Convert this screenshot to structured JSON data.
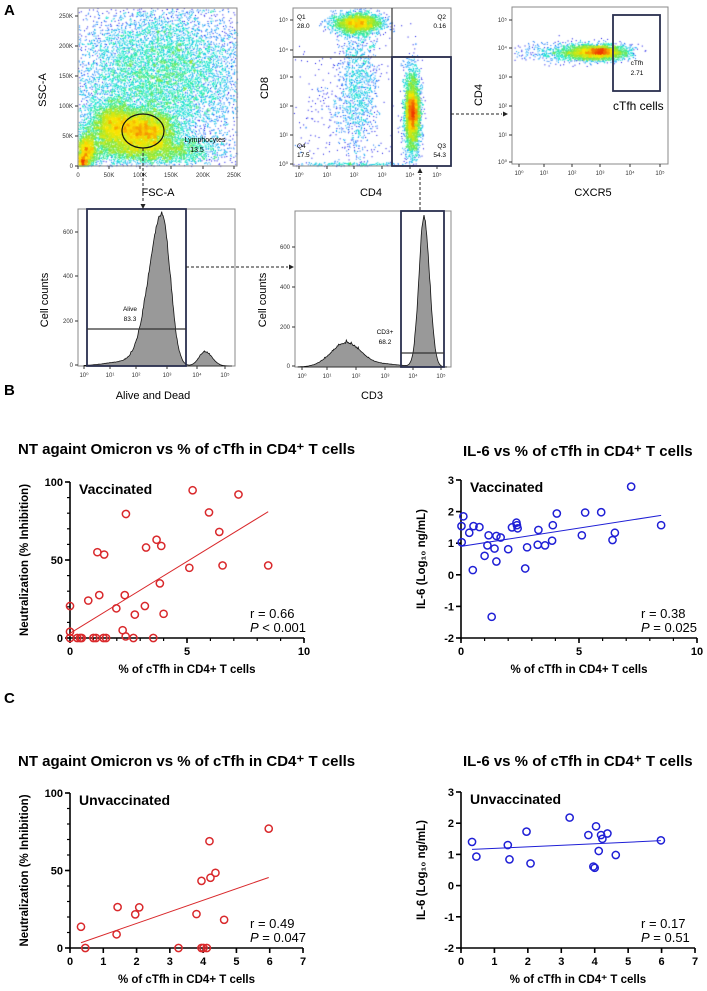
{
  "panel_a": {
    "letter": "A",
    "fsc_plot": {
      "x_label": "FSC-A",
      "y_label": "SSC-A",
      "x_ticks": [
        "0",
        "50K",
        "100K",
        "150K",
        "200K",
        "250K"
      ],
      "y_ticks": [
        "0",
        "50K",
        "100K",
        "150K",
        "200K",
        "250K"
      ],
      "gate_name": "Lymphocytes",
      "gate_value": "13.5"
    },
    "cd4_cd8_plot": {
      "x_label": "CD4",
      "y_label": "CD8",
      "x_ticks": [
        "10⁰",
        "10¹",
        "10²",
        "10³",
        "10⁴",
        "10⁵"
      ],
      "y_ticks": [
        "10⁰",
        "10¹",
        "10²",
        "10³",
        "10⁴",
        "10⁵"
      ],
      "quadrants": [
        {
          "name": "Q1",
          "value": "28.0"
        },
        {
          "name": "Q2",
          "value": "0.16"
        },
        {
          "name": "Q3",
          "value": "54.3"
        },
        {
          "name": "Q4",
          "value": "17.5"
        }
      ]
    },
    "cxcr5_plot": {
      "x_label": "CXCR5",
      "y_label": "CD4",
      "x_ticks": [
        "10⁰",
        "10¹",
        "10²",
        "10³",
        "10⁴",
        "10⁵"
      ],
      "y_ticks": [
        "10⁰",
        "10¹",
        "10²",
        "10³",
        "10⁴",
        "10⁵"
      ],
      "gate_name": "cTfh",
      "gate_value": "2.71",
      "caption": "cTfh cells"
    },
    "live_dead_hist": {
      "x_label": "Alive and Dead",
      "y_label": "Cell counts",
      "x_ticks": [
        "10⁰",
        "10¹",
        "10²",
        "10³",
        "10⁴",
        "10⁵"
      ],
      "y_ticks": [
        "0",
        "200",
        "400",
        "600"
      ],
      "gate_name": "Alive",
      "gate_value": "83.3"
    },
    "cd3_hist": {
      "x_label": "CD3",
      "y_label": "Cell counts",
      "x_ticks": [
        "10⁰",
        "10¹",
        "10²",
        "10³",
        "10⁴",
        "10⁵"
      ],
      "y_ticks": [
        "0",
        "200",
        "400",
        "600"
      ],
      "gate_name": "CD3+",
      "gate_value": "68.2"
    },
    "colors": {
      "gate": "#2a2f4f",
      "hist_fill": "#999999"
    }
  },
  "panel_b": {
    "letter": "B"
  },
  "panel_c": {
    "letter": "C"
  },
  "chart_data": [
    {
      "type": "scatter",
      "title": "NT againt Omicron vs % of cTfh in CD4⁺ T cells",
      "group": "Vaccinated",
      "xlabel": "% of cTfh in CD4+ T cells",
      "ylabel": "Neutralization (% Inhibition)",
      "xlim": [
        0,
        10
      ],
      "ylim": [
        0,
        100
      ],
      "x_ticks": [
        0,
        5,
        10
      ],
      "y_ticks": [
        0,
        50,
        100
      ],
      "x_minor_step": 1,
      "y_minor_step": 10,
      "color": "#d9282b",
      "points": [
        [
          5.24,
          94.7
        ],
        [
          7.2,
          92
        ],
        [
          2.39,
          79.5
        ],
        [
          5.94,
          80.5
        ],
        [
          6.38,
          68
        ],
        [
          3.7,
          63
        ],
        [
          3.9,
          59
        ],
        [
          3.25,
          58
        ],
        [
          1.17,
          55
        ],
        [
          1.46,
          53.5
        ],
        [
          5.1,
          45
        ],
        [
          6.52,
          46.5
        ],
        [
          8.47,
          46.5
        ],
        [
          3.84,
          35
        ],
        [
          1.25,
          27.5
        ],
        [
          2.34,
          27.5
        ],
        [
          0.78,
          24
        ],
        [
          0,
          20.5
        ],
        [
          1.98,
          19
        ],
        [
          3.2,
          20.5
        ],
        [
          2.77,
          15
        ],
        [
          4.0,
          15.5
        ],
        [
          2.25,
          5
        ],
        [
          2.38,
          1
        ],
        [
          0,
          4
        ],
        [
          0,
          0
        ],
        [
          0.31,
          0
        ],
        [
          0.43,
          0
        ],
        [
          0.5,
          0
        ],
        [
          1.0,
          0
        ],
        [
          1.11,
          0
        ],
        [
          1.43,
          0
        ],
        [
          1.54,
          0
        ],
        [
          2.71,
          0
        ],
        [
          3.56,
          0
        ]
      ],
      "fit_line": [
        [
          0,
          3
        ],
        [
          8.47,
          81
        ]
      ],
      "stats": {
        "r": "r = 0.66",
        "p_label": "P",
        "p_value": " < 0.001"
      }
    },
    {
      "type": "scatter",
      "title": "IL-6 vs % of cTfh in CD4⁺ T cells",
      "group": "Vaccinated",
      "xlabel": "% of cTfh in CD4+ T cells",
      "ylabel": "IL-6 (Log₁₀ ng/mL)",
      "xlim": [
        0,
        10
      ],
      "ylim": [
        -2,
        3
      ],
      "x_ticks": [
        0,
        5,
        10
      ],
      "y_ticks": [
        -2,
        -1,
        0,
        1,
        2,
        3
      ],
      "x_minor_step": 1,
      "y_minor_step": 1,
      "color": "#1f1fd6",
      "points": [
        [
          7.21,
          2.79
        ],
        [
          0.1,
          1.85
        ],
        [
          4.06,
          1.94
        ],
        [
          5.26,
          1.97
        ],
        [
          5.94,
          1.98
        ],
        [
          0.02,
          1.54
        ],
        [
          0.53,
          1.54
        ],
        [
          0.78,
          1.51
        ],
        [
          0.35,
          1.33
        ],
        [
          1.17,
          1.25
        ],
        [
          1.5,
          1.23
        ],
        [
          1.68,
          1.18
        ],
        [
          2.16,
          1.5
        ],
        [
          2.35,
          1.65
        ],
        [
          2.37,
          1.57
        ],
        [
          2.4,
          1.47
        ],
        [
          3.28,
          1.42
        ],
        [
          3.89,
          1.57
        ],
        [
          5.12,
          1.25
        ],
        [
          6.52,
          1.33
        ],
        [
          6.42,
          1.1
        ],
        [
          8.48,
          1.57
        ],
        [
          0.03,
          1.03
        ],
        [
          1.12,
          0.93
        ],
        [
          1.42,
          0.83
        ],
        [
          2.0,
          0.81
        ],
        [
          2.8,
          0.87
        ],
        [
          3.25,
          0.95
        ],
        [
          3.56,
          0.93
        ],
        [
          3.86,
          1.08
        ],
        [
          1.0,
          0.6
        ],
        [
          1.5,
          0.42
        ],
        [
          0.5,
          0.15
        ],
        [
          2.72,
          0.2
        ],
        [
          1.3,
          -1.33
        ]
      ],
      "fit_line": [
        [
          0,
          0.9
        ],
        [
          8.48,
          1.88
        ]
      ],
      "stats": {
        "r": "r = 0.38",
        "p_label": "P",
        "p_value": " = 0.025"
      }
    },
    {
      "type": "scatter",
      "title": "NT againt Omicron vs % of cTfh in CD4⁺ T cells",
      "group": "Unvaccinated",
      "xlabel": "% of cTfh in CD4+ T cells",
      "ylabel": "Neutralization (% Inhibition)",
      "xlim": [
        0,
        7
      ],
      "ylim": [
        0,
        100
      ],
      "x_ticks": [
        0,
        1,
        2,
        3,
        4,
        5,
        6,
        7
      ],
      "y_ticks": [
        0,
        50,
        100
      ],
      "x_minor_step": 1,
      "y_minor_step": 10,
      "color": "#d9282b",
      "points": [
        [
          0.33,
          13.7
        ],
        [
          0.46,
          0
        ],
        [
          1.4,
          8.8
        ],
        [
          1.43,
          26.4
        ],
        [
          1.96,
          21.7
        ],
        [
          2.08,
          26.2
        ],
        [
          3.26,
          0
        ],
        [
          3.8,
          21.9
        ],
        [
          3.95,
          43.3
        ],
        [
          4.19,
          68.9
        ],
        [
          4.22,
          45.3
        ],
        [
          4.37,
          48.5
        ],
        [
          4.63,
          18.2
        ],
        [
          5.97,
          77
        ],
        [
          3.95,
          0
        ],
        [
          4.01,
          0
        ],
        [
          4.11,
          0
        ]
      ],
      "fit_line": [
        [
          0.33,
          3.4
        ],
        [
          5.97,
          45.5
        ]
      ],
      "stats": {
        "r": "r = 0.49",
        "p_label": "P",
        "p_value": " = 0.047"
      }
    },
    {
      "type": "scatter",
      "title": "IL-6 vs % of cTfh in CD4⁺ T cells",
      "group": "Unvaccinated",
      "xlabel": "% of cTfh in CD4⁺ T cells",
      "ylabel": "IL-6 (Log₁₀ ng/mL)",
      "xlim": [
        0,
        7
      ],
      "ylim": [
        -2,
        3
      ],
      "x_ticks": [
        0,
        1,
        2,
        3,
        4,
        5,
        6,
        7
      ],
      "y_ticks": [
        -2,
        -1,
        0,
        1,
        2,
        3
      ],
      "x_minor_step": 1,
      "y_minor_step": 1,
      "color": "#1f1fd6",
      "points": [
        [
          0.33,
          1.4
        ],
        [
          0.46,
          0.93
        ],
        [
          1.4,
          1.3
        ],
        [
          1.45,
          0.84
        ],
        [
          1.96,
          1.73
        ],
        [
          2.08,
          0.71
        ],
        [
          3.25,
          2.18
        ],
        [
          3.81,
          1.62
        ],
        [
          4.04,
          1.9
        ],
        [
          4.19,
          1.62
        ],
        [
          4.23,
          1.5
        ],
        [
          4.38,
          1.67
        ],
        [
          4.12,
          1.11
        ],
        [
          4.63,
          0.98
        ],
        [
          5.98,
          1.45
        ],
        [
          3.96,
          0.61
        ],
        [
          4.0,
          0.57
        ]
      ],
      "fit_line": [
        [
          0.33,
          1.16
        ],
        [
          5.98,
          1.44
        ]
      ],
      "stats": {
        "r": "r = 0.17",
        "p_label": "P",
        "p_value": " = 0.51"
      }
    }
  ]
}
